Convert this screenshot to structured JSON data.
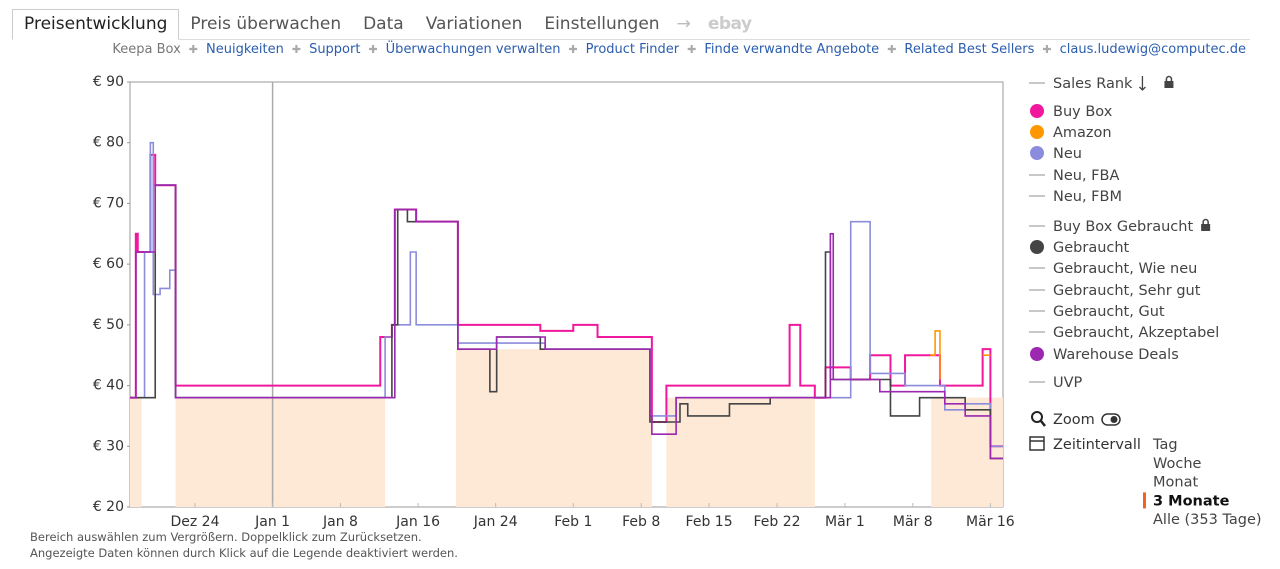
{
  "tabs": [
    {
      "label": "Preisentwicklung",
      "active": true
    },
    {
      "label": "Preis überwachen"
    },
    {
      "label": "Data"
    },
    {
      "label": "Variationen"
    },
    {
      "label": "Einstellungen"
    },
    {
      "label": "ebay",
      "muted": true
    }
  ],
  "links": [
    {
      "label": "Keepa Box",
      "muted": true
    },
    {
      "label": "Neuigkeiten"
    },
    {
      "label": "Support"
    },
    {
      "label": "Überwachungen verwalten"
    },
    {
      "label": "Product Finder"
    },
    {
      "label": "Finde verwandte Angebote"
    },
    {
      "label": "Related Best Sellers"
    },
    {
      "label": "claus.ludewig@computec.de"
    }
  ],
  "chart_data": {
    "type": "line",
    "step": true,
    "xlim": [
      -14.7,
      75.3
    ],
    "xticks": [
      {
        "value": -8,
        "label": "Dez 24"
      },
      {
        "value": 0,
        "label": "Jan 1"
      },
      {
        "value": 7,
        "label": "Jan 8"
      },
      {
        "value": 15,
        "label": "Jan 16"
      },
      {
        "value": 23,
        "label": "Jan 24"
      },
      {
        "value": 31,
        "label": "Feb 1"
      },
      {
        "value": 38,
        "label": "Feb 8"
      },
      {
        "value": 45,
        "label": "Feb 15"
      },
      {
        "value": 52,
        "label": "Feb 22"
      },
      {
        "value": 59,
        "label": "Mär 1"
      },
      {
        "value": 66,
        "label": "Mär 8"
      },
      {
        "value": 74,
        "label": "Mär 16"
      }
    ],
    "ylim": [
      20,
      90
    ],
    "yticks": [
      {
        "value": 90,
        "label": "€ 90"
      },
      {
        "value": 80,
        "label": "€ 80"
      },
      {
        "value": 70,
        "label": "€ 70"
      },
      {
        "value": 60,
        "label": "€ 60"
      },
      {
        "value": 50,
        "label": "€ 50"
      },
      {
        "value": 40,
        "label": "€ 40"
      },
      {
        "value": 30,
        "label": "€ 30"
      },
      {
        "value": 20,
        "label": "€ 20"
      }
    ],
    "grid": false,
    "marker_x": 0,
    "highlight_color": "#fde9d6",
    "highlights": [
      {
        "x": [
          -14.7,
          -13.5
        ],
        "top": 38
      },
      {
        "x": [
          -10.0,
          11.6
        ],
        "top": 38
      },
      {
        "x": [
          18.9,
          39.1
        ],
        "top": 46
      },
      {
        "x": [
          40.6,
          55.9
        ],
        "top": 38
      },
      {
        "x": [
          67.9,
          75.3
        ],
        "top": 38
      }
    ],
    "series": [
      {
        "name": "Sales Rank",
        "color": "#c8c8c8"
      },
      {
        "name": "Buy Box",
        "color": "#f0189d",
        "x": [
          -14.7,
          -14.1,
          -13.9,
          -12.6,
          -12.1,
          -10.0,
          11.1,
          12.3,
          12.6,
          14.8,
          19.1,
          27.6,
          31.0,
          33.5,
          38.9,
          39.1,
          40.6,
          53.3,
          54.4,
          55.9,
          57.0,
          59.6,
          61.6,
          63.7,
          65.2,
          68.8,
          73.2,
          74.0,
          75.3
        ],
        "values": [
          38,
          65,
          62,
          78,
          73,
          40,
          48,
          50,
          69,
          67,
          50,
          49,
          50,
          48,
          48,
          34,
          40,
          50,
          40,
          38,
          43,
          41,
          45,
          40,
          45,
          40,
          46,
          30,
          30
        ]
      },
      {
        "name": "Amazon",
        "color": "#ff9800",
        "x": [
          67.8,
          68.3,
          68.8,
          69.3,
          73.2,
          74.0
        ],
        "values": [
          45,
          49,
          41,
          null,
          45,
          45
        ]
      },
      {
        "name": "Neu",
        "color": "#8c8cdc",
        "x": [
          -14.7,
          -13.2,
          -12.6,
          -12.3,
          -11.6,
          -10.6,
          -10.0,
          11.6,
          12.3,
          14.2,
          14.8,
          19.1,
          28.1,
          38.9,
          41.6,
          55.9,
          59.6,
          61.6,
          65.2,
          69.3,
          71.4,
          74.0,
          75.3
        ],
        "values": [
          38,
          62,
          80,
          55,
          56,
          59,
          38,
          48,
          50,
          62,
          50,
          47,
          46,
          35,
          38,
          38,
          67,
          42,
          40,
          36,
          37,
          30,
          30
        ]
      },
      {
        "name": "Neu, FBA",
        "color": "#c8c8c8"
      },
      {
        "name": "Neu, FBM",
        "color": "#c8c8c8"
      },
      {
        "name": "Buy Box Gebraucht",
        "color": "#c8c8c8"
      },
      {
        "name": "Gebraucht",
        "color": "#444444",
        "x": [
          -14.7,
          -12.1,
          -10.0,
          12.3,
          12.9,
          13.9,
          19.1,
          22.4,
          23.1,
          27.6,
          38.9,
          42.0,
          42.8,
          47.1,
          51.3,
          57.0,
          57.5,
          57.8,
          63.7,
          66.7,
          71.4,
          74.0,
          75.3
        ],
        "values": [
          38,
          73,
          38,
          50,
          69,
          67,
          46,
          39,
          48,
          46,
          34,
          37,
          35,
          37,
          38,
          62,
          41,
          41,
          35,
          38,
          36,
          28,
          28
        ]
      },
      {
        "name": "Gebraucht, Wie neu",
        "color": "#c8c8c8"
      },
      {
        "name": "Gebraucht, Sehr gut",
        "color": "#c8c8c8"
      },
      {
        "name": "Gebraucht, Gut",
        "color": "#c8c8c8"
      },
      {
        "name": "Gebraucht, Akzeptabel",
        "color": "#c8c8c8"
      },
      {
        "name": "Warehouse Deals",
        "color": "#9c27b0",
        "x": [
          -14.7,
          -14.1,
          -12.1,
          -10.0,
          12.6,
          14.8,
          19.1,
          23.1,
          28.1,
          38.9,
          39.1,
          41.6,
          57.5,
          57.8,
          62.6,
          69.3,
          71.4,
          74.0,
          75.3
        ],
        "values": [
          38,
          62,
          73,
          38,
          69,
          67,
          46,
          48,
          46,
          35,
          32,
          38,
          65,
          41,
          39,
          37,
          35,
          28,
          28
        ]
      },
      {
        "name": "UVP",
        "color": "#c8c8c8"
      }
    ]
  },
  "controls": {
    "zoom": "Zoom",
    "interval_label": "Zeitintervall",
    "intervals": [
      {
        "label": "Tag"
      },
      {
        "label": "Woche"
      },
      {
        "label": "Monat"
      },
      {
        "label": "3 Monate",
        "active": true
      },
      {
        "label": "Alle (353 Tage)"
      }
    ]
  },
  "footer": [
    "Bereich auswählen zum Vergrößern. Doppelklick zum Zurücksetzen.",
    "Angezeigte Daten können durch Klick auf die Legende deaktiviert werden."
  ]
}
